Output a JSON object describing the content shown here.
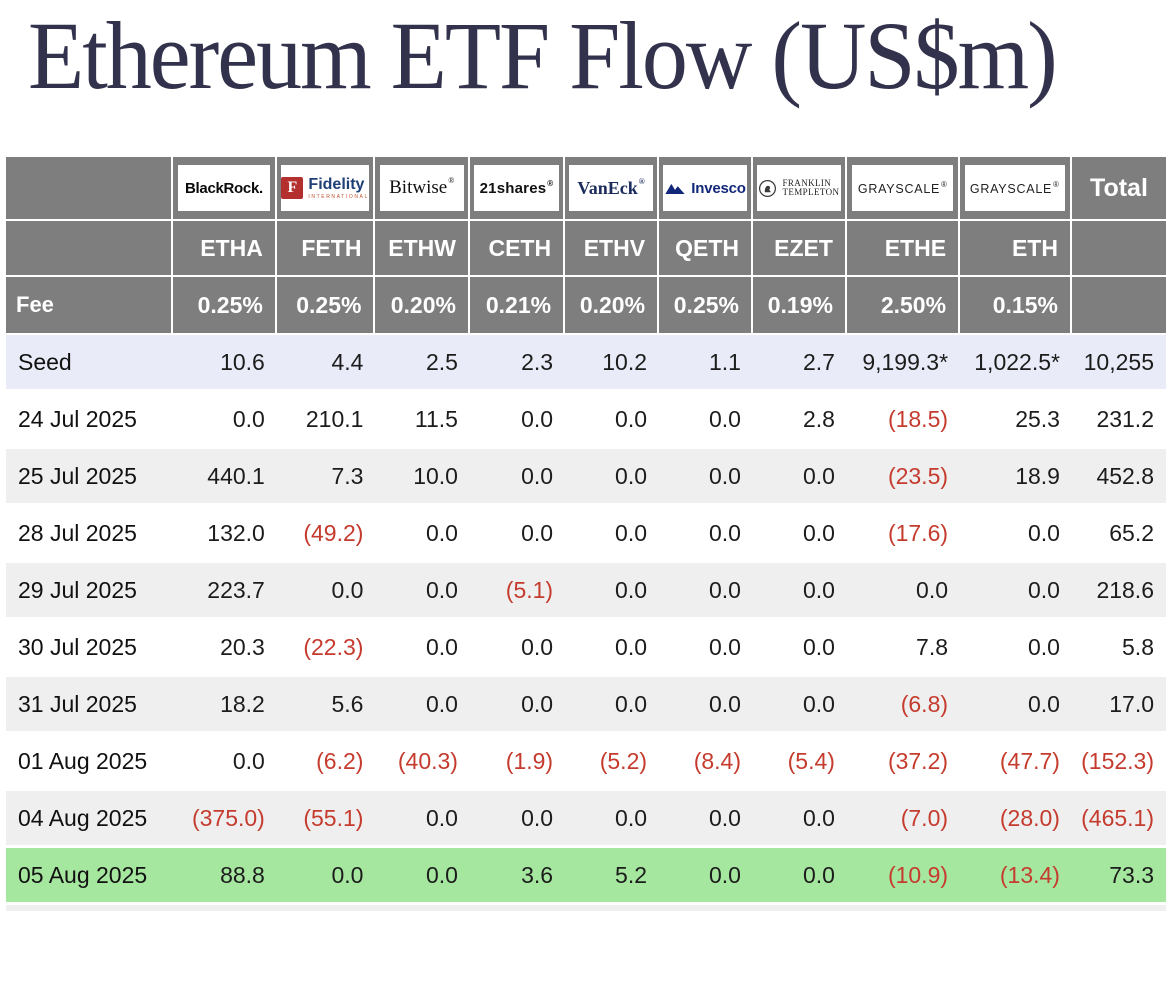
{
  "title": "Ethereum ETF Flow (US$m)",
  "colors": {
    "header_bg": "#7e7e7e",
    "seed_row_bg": "#e9ecf8",
    "alt_row_bg": "#efefef",
    "latest_row_bg": "#a6e7a0",
    "negative_value": "#c53b2e",
    "title_text": "#32324c",
    "header_text": "#ffffff"
  },
  "chart_data": {
    "type": "table",
    "title": "Ethereum ETF Flow (US$m)",
    "providers": [
      {
        "style": "blackrock",
        "name": "BlackRock."
      },
      {
        "style": "fidelity",
        "name": "Fidelity",
        "subtext": "INTERNATIONAL"
      },
      {
        "style": "bitwise",
        "name": "Bitwise",
        "sup": "®"
      },
      {
        "style": "21shares",
        "name": "21shares",
        "sup": "®"
      },
      {
        "style": "vaneck",
        "name": "VanEck",
        "sup": "®"
      },
      {
        "style": "invesco",
        "name": "Invesco"
      },
      {
        "style": "franklin",
        "line1": "FRANKLIN",
        "line2": "TEMPLETON"
      },
      {
        "style": "grayscale",
        "name": "GRAYSCALE",
        "sup": "®"
      },
      {
        "style": "grayscale",
        "name": "GRAYSCALE",
        "sup": "®"
      }
    ],
    "total_label": "Total",
    "tickers": [
      "ETHA",
      "FETH",
      "ETHW",
      "CETH",
      "ETHV",
      "QETH",
      "EZET",
      "ETHE",
      "ETH"
    ],
    "fee_row": {
      "label": "Fee",
      "values": [
        "0.25%",
        "0.25%",
        "0.20%",
        "0.21%",
        "0.20%",
        "0.25%",
        "0.19%",
        "2.50%",
        "0.15%"
      ]
    },
    "rows": [
      {
        "label": "Seed",
        "highlight": "seed",
        "values": [
          "10.6",
          "4.4",
          "2.5",
          "2.3",
          "10.2",
          "1.1",
          "2.7",
          "9,199.3*",
          "1,022.5*",
          "10,255"
        ]
      },
      {
        "label": "24 Jul 2025",
        "highlight": "white",
        "values": [
          "0.0",
          "210.1",
          "11.5",
          "0.0",
          "0.0",
          "0.0",
          "2.8",
          "(18.5)",
          "25.3",
          "231.2"
        ]
      },
      {
        "label": "25 Jul 2025",
        "highlight": "gray",
        "values": [
          "440.1",
          "7.3",
          "10.0",
          "0.0",
          "0.0",
          "0.0",
          "0.0",
          "(23.5)",
          "18.9",
          "452.8"
        ]
      },
      {
        "label": "28 Jul 2025",
        "highlight": "white",
        "values": [
          "132.0",
          "(49.2)",
          "0.0",
          "0.0",
          "0.0",
          "0.0",
          "0.0",
          "(17.6)",
          "0.0",
          "65.2"
        ]
      },
      {
        "label": "29 Jul 2025",
        "highlight": "gray",
        "values": [
          "223.7",
          "0.0",
          "0.0",
          "(5.1)",
          "0.0",
          "0.0",
          "0.0",
          "0.0",
          "0.0",
          "218.6"
        ]
      },
      {
        "label": "30 Jul 2025",
        "highlight": "white",
        "values": [
          "20.3",
          "(22.3)",
          "0.0",
          "0.0",
          "0.0",
          "0.0",
          "0.0",
          "7.8",
          "0.0",
          "5.8"
        ]
      },
      {
        "label": "31 Jul 2025",
        "highlight": "gray",
        "values": [
          "18.2",
          "5.6",
          "0.0",
          "0.0",
          "0.0",
          "0.0",
          "0.0",
          "(6.8)",
          "0.0",
          "17.0"
        ]
      },
      {
        "label": "01 Aug 2025",
        "highlight": "white",
        "values": [
          "0.0",
          "(6.2)",
          "(40.3)",
          "(1.9)",
          "(5.2)",
          "(8.4)",
          "(5.4)",
          "(37.2)",
          "(47.7)",
          "(152.3)"
        ]
      },
      {
        "label": "04 Aug 2025",
        "highlight": "gray",
        "values": [
          "(375.0)",
          "(55.1)",
          "0.0",
          "0.0",
          "0.0",
          "0.0",
          "0.0",
          "(7.0)",
          "(28.0)",
          "(465.1)"
        ]
      },
      {
        "label": "05 Aug 2025",
        "highlight": "green",
        "values": [
          "88.8",
          "0.0",
          "0.0",
          "3.6",
          "5.2",
          "0.0",
          "0.0",
          "(10.9)",
          "(13.4)",
          "73.3"
        ]
      }
    ],
    "notes": {
      "negative_format": "parentheses shown in red",
      "asterisk": "seed values for ETHE and ETH marked with *"
    }
  }
}
